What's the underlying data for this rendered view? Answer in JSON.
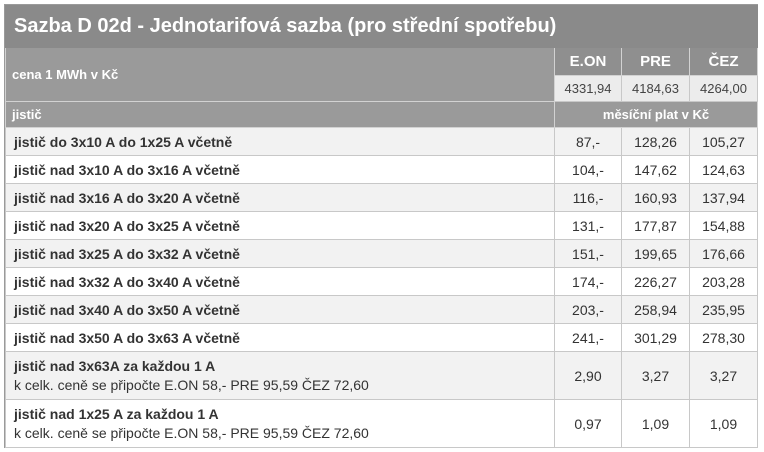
{
  "title": "Sazba D 02d - Jednotarifová sazba (pro střední spotřebu)",
  "price_header": {
    "label": "cena 1 MWh v Kč",
    "providers": [
      "E.ON",
      "PRE",
      "ČEZ"
    ],
    "prices": [
      "4331,94",
      "4184,63",
      "4264,00"
    ]
  },
  "breaker_header": {
    "label": "jistič",
    "monthly_label": "měsíční plat v Kč"
  },
  "rows": [
    {
      "label": "jistič do 3x10 A do 1x25 A včetně",
      "eon": "87,-",
      "pre": "128,26",
      "cez": "105,27"
    },
    {
      "label": "jistič nad 3x10 A do 3x16 A včetně",
      "eon": "104,-",
      "pre": "147,62",
      "cez": "124,63"
    },
    {
      "label": "jistič nad 3x16 A do 3x20 A včetně",
      "eon": "116,-",
      "pre": "160,93",
      "cez": "137,94"
    },
    {
      "label": "jistič nad 3x20 A do 3x25 A včetně",
      "eon": "131,-",
      "pre": "177,87",
      "cez": "154,88"
    },
    {
      "label": "jistič nad 3x25 A do 3x32 A včetně",
      "eon": "151,-",
      "pre": "199,65",
      "cez": "176,66"
    },
    {
      "label": "jistič nad 3x32 A do 3x40 A včetně",
      "eon": "174,-",
      "pre": "226,27",
      "cez": "203,28"
    },
    {
      "label": "jistič nad 3x40 A do 3x50 A včetně",
      "eon": "203,-",
      "pre": "258,94",
      "cez": "235,95"
    },
    {
      "label": "jistič nad 3x50 A do 3x63 A včetně",
      "eon": "241,-",
      "pre": "301,29",
      "cez": "278,30"
    }
  ],
  "extra_rows": [
    {
      "label": "jistič nad 3x63A za každou 1 A",
      "note": "k celk. ceně se připočte E.ON 58,- PRE 95,59 ČEZ 72,60",
      "eon": "2,90",
      "pre": "3,27",
      "cez": "3,27"
    },
    {
      "label": "jistič nad 1x25 A za každou 1 A",
      "note": "k celk. ceně se připočte E.ON 58,- PRE 95,59 ČEZ 72,60",
      "eon": "0,97",
      "pre": "1,09",
      "cez": "1,09"
    }
  ]
}
